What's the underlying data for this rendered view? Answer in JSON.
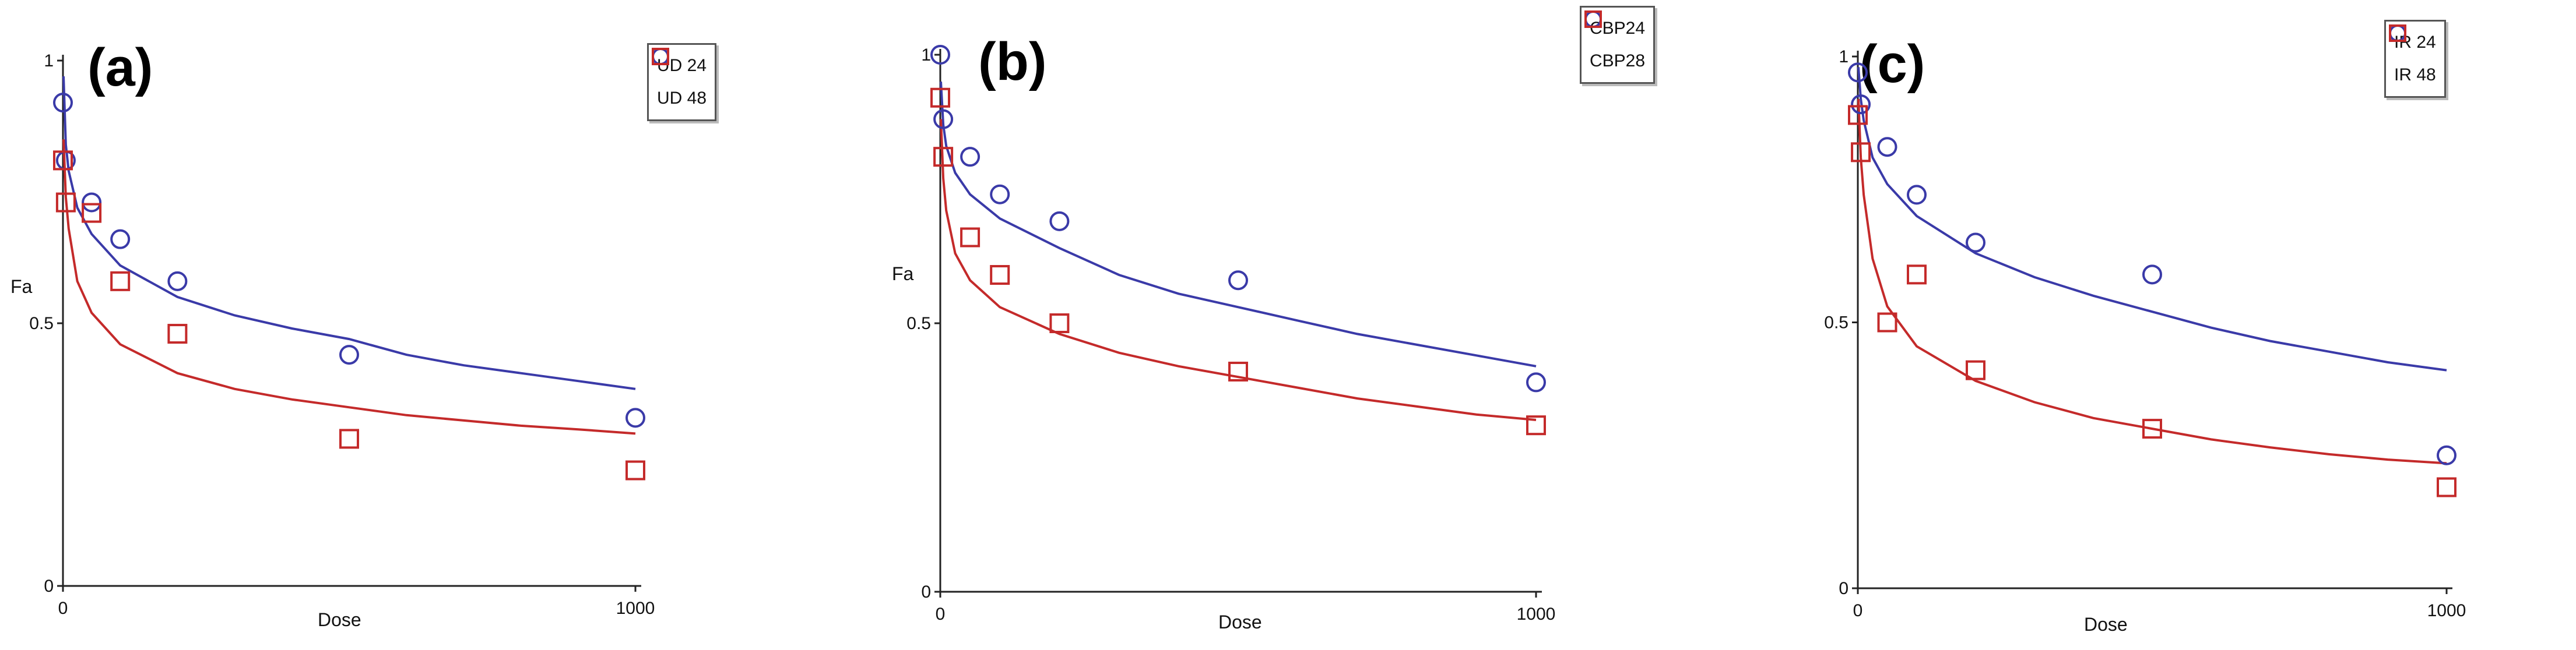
{
  "chart_data": [
    {
      "type": "scatter",
      "panel_label": "(a)",
      "xlabel": "Dose",
      "ylabel": "Fa",
      "xlim": [
        0,
        1000
      ],
      "ylim": [
        0,
        1
      ],
      "x_ticks": [
        "0",
        "1000"
      ],
      "y_ticks": [
        "0",
        "0.5",
        "1"
      ],
      "legend_position": "top-right",
      "series": [
        {
          "name": "UD 24",
          "marker": "circle",
          "color": "#3a3aa8",
          "x": [
            0,
            5,
            50,
            100,
            200,
            500,
            1000
          ],
          "y": [
            0.92,
            0.81,
            0.73,
            0.66,
            0.58,
            0.44,
            0.32
          ],
          "fit_x": [
            1,
            5,
            10,
            25,
            50,
            100,
            200,
            300,
            400,
            500,
            600,
            700,
            800,
            900,
            1000
          ],
          "fit_y": [
            0.97,
            0.84,
            0.79,
            0.72,
            0.67,
            0.61,
            0.55,
            0.515,
            0.49,
            0.47,
            0.44,
            0.42,
            0.405,
            0.39,
            0.375
          ]
        },
        {
          "name": "UD 48",
          "marker": "square",
          "color": "#c42a2a",
          "x": [
            0,
            5,
            50,
            100,
            200,
            500,
            1000
          ],
          "y": [
            0.81,
            0.73,
            0.71,
            0.58,
            0.48,
            0.28,
            0.22
          ],
          "fit_x": [
            1,
            5,
            10,
            25,
            50,
            100,
            200,
            300,
            400,
            500,
            600,
            700,
            800,
            900,
            1000
          ],
          "fit_y": [
            0.85,
            0.74,
            0.68,
            0.58,
            0.52,
            0.46,
            0.405,
            0.375,
            0.355,
            0.34,
            0.325,
            0.315,
            0.305,
            0.298,
            0.29
          ]
        }
      ]
    },
    {
      "type": "scatter",
      "panel_label": "(b)",
      "xlabel": "Dose",
      "ylabel": "Fa",
      "xlim": [
        0,
        1000
      ],
      "ylim": [
        0,
        1
      ],
      "x_ticks": [
        "0",
        "1000"
      ],
      "y_ticks": [
        "0",
        "0.5",
        "1"
      ],
      "legend_position": "top-right",
      "series": [
        {
          "name": "CBP24",
          "marker": "circle",
          "color": "#3a3aa8",
          "x": [
            0,
            5,
            50,
            100,
            200,
            500,
            1000
          ],
          "y": [
            1.0,
            0.88,
            0.81,
            0.74,
            0.69,
            0.58,
            0.39
          ],
          "fit_x": [
            1,
            5,
            10,
            25,
            50,
            100,
            200,
            300,
            400,
            500,
            600,
            700,
            800,
            900,
            1000
          ],
          "fit_y": [
            0.95,
            0.87,
            0.83,
            0.78,
            0.74,
            0.695,
            0.64,
            0.59,
            0.555,
            0.53,
            0.505,
            0.48,
            0.46,
            0.44,
            0.42
          ]
        },
        {
          "name": "CBP28",
          "marker": "square",
          "color": "#c42a2a",
          "x": [
            0,
            5,
            50,
            100,
            200,
            500,
            1000
          ],
          "y": [
            0.92,
            0.81,
            0.66,
            0.59,
            0.5,
            0.41,
            0.31
          ],
          "fit_x": [
            1,
            5,
            10,
            25,
            50,
            100,
            200,
            300,
            400,
            500,
            600,
            700,
            800,
            900,
            1000
          ],
          "fit_y": [
            0.88,
            0.77,
            0.71,
            0.63,
            0.58,
            0.53,
            0.48,
            0.445,
            0.42,
            0.4,
            0.38,
            0.36,
            0.345,
            0.33,
            0.32
          ]
        }
      ]
    },
    {
      "type": "scatter",
      "panel_label": "(c)",
      "xlabel": "Dose",
      "ylabel": "",
      "xlim": [
        0,
        1000
      ],
      "ylim": [
        0,
        1
      ],
      "x_ticks": [
        "0",
        "1000"
      ],
      "y_ticks": [
        "0",
        "0.5",
        "1"
      ],
      "legend_position": "top-right",
      "series": [
        {
          "name": "IR 24",
          "marker": "circle",
          "color": "#3a3aa8",
          "x": [
            0,
            5,
            50,
            100,
            200,
            500,
            1000
          ],
          "y": [
            0.97,
            0.91,
            0.83,
            0.74,
            0.65,
            0.59,
            0.25
          ],
          "fit_x": [
            1,
            5,
            10,
            25,
            50,
            100,
            200,
            300,
            400,
            500,
            600,
            700,
            800,
            900,
            1000
          ],
          "fit_y": [
            0.98,
            0.92,
            0.88,
            0.81,
            0.76,
            0.7,
            0.63,
            0.585,
            0.55,
            0.52,
            0.49,
            0.465,
            0.445,
            0.425,
            0.41
          ]
        },
        {
          "name": "IR 48",
          "marker": "square",
          "color": "#c42a2a",
          "x": [
            0,
            5,
            50,
            100,
            200,
            500,
            1000
          ],
          "y": [
            0.89,
            0.82,
            0.5,
            0.59,
            0.41,
            0.3,
            0.19
          ],
          "fit_x": [
            1,
            5,
            10,
            25,
            50,
            100,
            200,
            300,
            400,
            500,
            600,
            700,
            800,
            900,
            1000
          ],
          "fit_y": [
            0.92,
            0.81,
            0.74,
            0.62,
            0.53,
            0.455,
            0.39,
            0.35,
            0.32,
            0.3,
            0.28,
            0.265,
            0.252,
            0.242,
            0.235
          ]
        }
      ]
    }
  ]
}
